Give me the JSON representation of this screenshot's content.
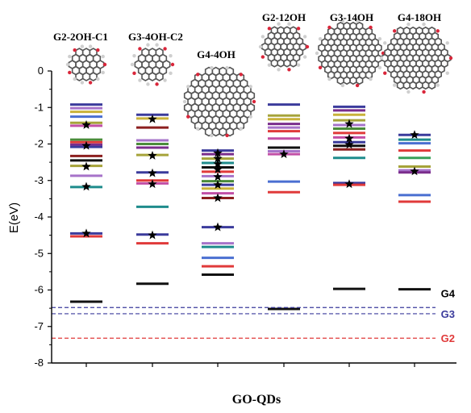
{
  "chart_data": {
    "type": "scatter",
    "xlabel": "GO-QDs",
    "ylabel": "E(eV)",
    "ylim": [
      -8,
      0
    ],
    "yticks": [
      0,
      -1,
      -2,
      -3,
      -4,
      -5,
      -6,
      -7,
      -8
    ],
    "categories": [
      "G2-2OH-C1",
      "G3-4OH-C2",
      "G4-4OH",
      "G2-12OH",
      "G3-14OH",
      "G4-18OH"
    ],
    "colors": {
      "navy": "#3b3b9c",
      "purple": "#7a2d8c",
      "green": "#4a8b3a",
      "olive": "#a6a33a",
      "teal": "#1f8c8c",
      "red": "#e03a3a",
      "magenta": "#c24fa6",
      "darkred": "#8c1f1f",
      "black": "#111111",
      "gold": "#c9b23a",
      "blue": "#4a6fd1",
      "violet": "#a673c9",
      "lime": "#38a05a"
    },
    "levels": [
      {
        "category": "G2-2OH-C1",
        "lines": [
          {
            "e": -0.92,
            "c": "navy"
          },
          {
            "e": -1.02,
            "c": "violet"
          },
          {
            "e": -1.12,
            "c": "gold"
          },
          {
            "e": -1.25,
            "c": "blue"
          },
          {
            "e": -1.42,
            "c": "olive"
          },
          {
            "e": -1.5,
            "c": "magenta"
          },
          {
            "e": -1.88,
            "c": "green"
          },
          {
            "e": -1.95,
            "c": "red"
          },
          {
            "e": -2.02,
            "c": "purple"
          },
          {
            "e": -2.08,
            "c": "navy"
          },
          {
            "e": -2.33,
            "c": "darkred"
          },
          {
            "e": -2.45,
            "c": "black"
          },
          {
            "e": -2.6,
            "c": "olive"
          },
          {
            "e": -2.87,
            "c": "violet"
          },
          {
            "e": -3.18,
            "c": "teal"
          },
          {
            "e": -4.45,
            "c": "navy"
          },
          {
            "e": -4.53,
            "c": "red"
          },
          {
            "e": -6.32,
            "c": "black"
          }
        ],
        "stars": [
          -1.48,
          -2.05,
          -2.62,
          -3.17,
          -4.45
        ]
      },
      {
        "category": "G3-4OH-C2",
        "lines": [
          {
            "e": -1.2,
            "c": "navy"
          },
          {
            "e": -1.3,
            "c": "gold"
          },
          {
            "e": -1.55,
            "c": "darkred"
          },
          {
            "e": -1.9,
            "c": "violet"
          },
          {
            "e": -2.0,
            "c": "green"
          },
          {
            "e": -2.1,
            "c": "purple"
          },
          {
            "e": -2.3,
            "c": "olive"
          },
          {
            "e": -2.78,
            "c": "navy"
          },
          {
            "e": -3.0,
            "c": "red"
          },
          {
            "e": -3.08,
            "c": "magenta"
          },
          {
            "e": -3.72,
            "c": "teal"
          },
          {
            "e": -4.48,
            "c": "navy"
          },
          {
            "e": -4.72,
            "c": "red"
          },
          {
            "e": -5.83,
            "c": "black"
          }
        ],
        "stars": [
          -1.32,
          -2.32,
          -2.8,
          -3.1,
          -4.5
        ]
      },
      {
        "category": "G4-4OH",
        "lines": [
          {
            "e": -2.18,
            "c": "navy"
          },
          {
            "e": -2.28,
            "c": "purple"
          },
          {
            "e": -2.4,
            "c": "olive"
          },
          {
            "e": -2.52,
            "c": "teal"
          },
          {
            "e": -2.64,
            "c": "black"
          },
          {
            "e": -2.76,
            "c": "red"
          },
          {
            "e": -2.88,
            "c": "violet"
          },
          {
            "e": -3.02,
            "c": "green"
          },
          {
            "e": -3.12,
            "c": "navy"
          },
          {
            "e": -3.22,
            "c": "gold"
          },
          {
            "e": -3.35,
            "c": "magenta"
          },
          {
            "e": -3.48,
            "c": "darkred"
          },
          {
            "e": -4.28,
            "c": "navy"
          },
          {
            "e": -4.72,
            "c": "violet"
          },
          {
            "e": -4.82,
            "c": "teal"
          },
          {
            "e": -5.12,
            "c": "blue"
          },
          {
            "e": -5.35,
            "c": "red"
          },
          {
            "e": -5.58,
            "c": "black"
          }
        ],
        "stars": [
          -2.25,
          -2.4,
          -2.55,
          -2.7,
          -2.9,
          -3.12,
          -3.48,
          -4.28
        ]
      },
      {
        "category": "G2-12OH",
        "lines": [
          {
            "e": -0.92,
            "c": "navy"
          },
          {
            "e": -1.22,
            "c": "olive"
          },
          {
            "e": -1.32,
            "c": "gold"
          },
          {
            "e": -1.45,
            "c": "purple"
          },
          {
            "e": -1.55,
            "c": "violet"
          },
          {
            "e": -1.65,
            "c": "red"
          },
          {
            "e": -1.85,
            "c": "magenta"
          },
          {
            "e": -2.1,
            "c": "black"
          },
          {
            "e": -2.2,
            "c": "violet"
          },
          {
            "e": -2.28,
            "c": "magenta"
          },
          {
            "e": -3.03,
            "c": "blue"
          },
          {
            "e": -3.32,
            "c": "red"
          },
          {
            "e": -6.52,
            "c": "black"
          }
        ],
        "stars": [
          -2.28
        ]
      },
      {
        "category": "G3-14OH",
        "lines": [
          {
            "e": -0.98,
            "c": "navy"
          },
          {
            "e": -1.08,
            "c": "purple"
          },
          {
            "e": -1.2,
            "c": "gold"
          },
          {
            "e": -1.35,
            "c": "olive"
          },
          {
            "e": -1.48,
            "c": "violet"
          },
          {
            "e": -1.58,
            "c": "green"
          },
          {
            "e": -1.7,
            "c": "red"
          },
          {
            "e": -1.82,
            "c": "magenta"
          },
          {
            "e": -1.95,
            "c": "navy"
          },
          {
            "e": -2.05,
            "c": "black"
          },
          {
            "e": -2.15,
            "c": "darkred"
          },
          {
            "e": -2.38,
            "c": "teal"
          },
          {
            "e": -3.07,
            "c": "navy"
          },
          {
            "e": -3.12,
            "c": "red"
          },
          {
            "e": -5.97,
            "c": "black"
          }
        ],
        "stars": [
          -1.45,
          -1.85,
          -2.02,
          -3.1
        ]
      },
      {
        "category": "G4-18OH",
        "lines": [
          {
            "e": -1.75,
            "c": "navy"
          },
          {
            "e": -1.88,
            "c": "teal"
          },
          {
            "e": -1.98,
            "c": "blue"
          },
          {
            "e": -2.18,
            "c": "red"
          },
          {
            "e": -2.38,
            "c": "lime"
          },
          {
            "e": -2.62,
            "c": "olive"
          },
          {
            "e": -2.72,
            "c": "violet"
          },
          {
            "e": -2.78,
            "c": "purple"
          },
          {
            "e": -3.4,
            "c": "blue"
          },
          {
            "e": -3.58,
            "c": "red"
          },
          {
            "e": -5.98,
            "c": "black"
          }
        ],
        "stars": [
          -1.75,
          -2.75
        ]
      }
    ],
    "reference_lines": [
      {
        "name": "G4",
        "e": -6.48,
        "color": "#3b3b9c",
        "label_color": "#000000"
      },
      {
        "name": "G3",
        "e": -6.65,
        "color": "#3b3b9c",
        "label_color": "#3b3b9c"
      },
      {
        "name": "G2",
        "e": -7.32,
        "color": "#e03a3a",
        "label_color": "#e03a3a"
      }
    ]
  }
}
